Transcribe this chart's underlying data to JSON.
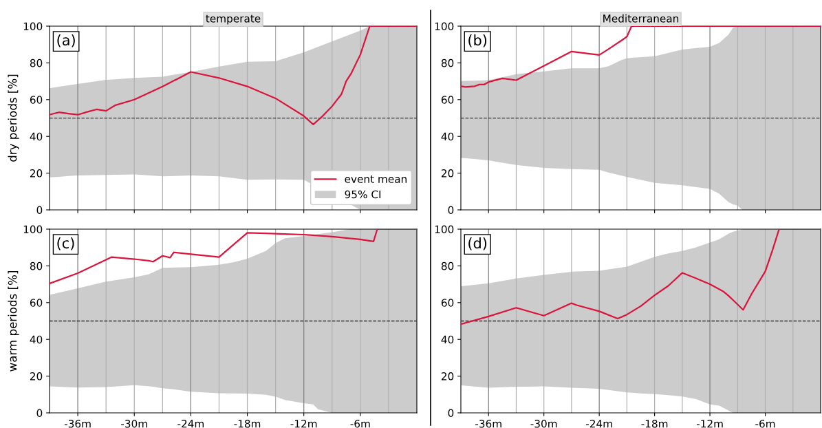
{
  "chart_data": [
    {
      "type": "line",
      "title": "temperate",
      "ylabel": "dry periods [%]",
      "xlim": [
        -39,
        0
      ],
      "ylim": [
        0,
        100
      ],
      "xticks": [
        {
          "value": -36,
          "label": null
        },
        {
          "value": -30,
          "label": null
        },
        {
          "value": -24,
          "label": null
        },
        {
          "value": -18,
          "label": null
        },
        {
          "value": -12,
          "label": null
        },
        {
          "value": -6,
          "label": null
        }
      ],
      "yticks": [
        0,
        20,
        40,
        60,
        80,
        100
      ],
      "tick_labels": "y",
      "legend": "bottom right",
      "annotations": [
        "(a)"
      ],
      "series": [
        {
          "name": "event mean",
          "color": "#dc143c",
          "x": [
            -39,
            -38,
            -37,
            -36,
            -35,
            -34,
            -33,
            -32,
            -30,
            -27,
            -24,
            -21,
            -18,
            -15,
            -12,
            -11,
            -10,
            -9,
            -8,
            -7.5,
            -7,
            -6,
            -5,
            0
          ],
          "values": [
            51.8,
            53.1,
            52.4,
            51.8,
            53.3,
            54.7,
            53.9,
            57,
            60,
            67.1,
            75.1,
            71.8,
            67.2,
            60.7,
            51.1,
            46.5,
            51.1,
            56.4,
            63,
            70.1,
            74,
            84.5,
            100,
            100
          ],
          "lower": [
            17.7,
            18,
            18.4,
            18.7,
            18.8,
            18.9,
            19,
            19.1,
            19.3,
            18.3,
            18.7,
            18.3,
            16.4,
            16.6,
            16.4,
            null,
            null,
            null,
            null,
            null,
            null,
            0,
            0,
            0
          ],
          "upper": [
            66.2,
            67,
            67.8,
            68.5,
            69.3,
            70,
            70.8,
            71.1,
            71.8,
            72.5,
            75.1,
            78,
            80.6,
            80.9,
            85.8,
            null,
            null,
            null,
            null,
            null,
            null,
            97.6,
            100,
            100
          ]
        },
        {
          "name": "95% CI",
          "type": "area",
          "color": "#cccccc"
        }
      ],
      "ref_lines": [
        {
          "axis": "y",
          "value": 50,
          "color": "#333333",
          "line_style": "dashed"
        },
        {
          "axis": "x",
          "value": -36,
          "color": "#808080"
        },
        {
          "axis": "x",
          "value": -33,
          "color": "#b0b0b0"
        },
        {
          "axis": "x",
          "value": -30,
          "color": "#b0b0b0"
        },
        {
          "axis": "x",
          "value": -27,
          "color": "#b0b0b0"
        },
        {
          "axis": "x",
          "value": -24,
          "color": "#808080"
        },
        {
          "axis": "x",
          "value": -21,
          "color": "#b0b0b0"
        },
        {
          "axis": "x",
          "value": -18,
          "color": "#b0b0b0"
        },
        {
          "axis": "x",
          "value": -15,
          "color": "#b0b0b0"
        },
        {
          "axis": "x",
          "value": -12,
          "color": "#808080"
        },
        {
          "axis": "x",
          "value": -9,
          "color": "#b0b0b0"
        },
        {
          "axis": "x",
          "value": -6,
          "color": "#b0b0b0"
        },
        {
          "axis": "x",
          "value": -3,
          "color": "#b0b0b0"
        }
      ]
    },
    {
      "type": "line",
      "title": "Mediterranean",
      "xlim": [
        -39,
        0
      ],
      "ylim": [
        0,
        100
      ],
      "xticks": [
        {
          "value": -36,
          "label": null
        },
        {
          "value": -30,
          "label": null
        },
        {
          "value": -24,
          "label": null
        },
        {
          "value": -18,
          "label": null
        },
        {
          "value": -12,
          "label": null
        },
        {
          "value": -6,
          "label": null
        }
      ],
      "yticks": [
        0,
        20,
        40,
        60,
        80,
        100
      ],
      "tick_labels": "y",
      "annotations": [
        "(b)"
      ],
      "series": [
        {
          "color": "#dc143c",
          "x": [
            -39,
            -38.5,
            -37.5,
            -37,
            -36.5,
            -36,
            -34.5,
            -33,
            -30,
            -27,
            -24,
            -23,
            -21.5,
            -21,
            -20.5,
            -18,
            -15,
            -12,
            -11,
            -10,
            -9.5,
            -9,
            -8.5,
            0
          ],
          "values": [
            67.3,
            66.9,
            67.3,
            68.2,
            68.2,
            69.6,
            71.6,
            70.6,
            78.4,
            86.2,
            84.3,
            87.5,
            92.5,
            94.3,
            100,
            100,
            100,
            100,
            100,
            100,
            100,
            100,
            100,
            100
          ],
          "lower": [
            28.3,
            28.1,
            27.7,
            27.4,
            27.2,
            27,
            25.7,
            24.4,
            22.8,
            22.2,
            21.8,
            20.3,
            18.5,
            17.9,
            17.4,
            14.7,
            13.4,
            11.4,
            8.8,
            4.3,
            3,
            2.3,
            0,
            0
          ],
          "upper": [
            70.1,
            70.2,
            70.3,
            70.4,
            70.5,
            70.6,
            72.2,
            73.9,
            75.4,
            77.1,
            77.1,
            78.2,
            81.7,
            82.5,
            82.8,
            83.6,
            87.3,
            88.8,
            90.8,
            95.3,
            99.2,
            100,
            100,
            100
          ]
        },
        {
          "type": "area",
          "color": "#cccccc"
        }
      ],
      "ref_lines": [
        {
          "axis": "y",
          "value": 50,
          "color": "#333333",
          "line_style": "dashed"
        },
        {
          "axis": "x",
          "value": -36,
          "color": "#808080"
        },
        {
          "axis": "x",
          "value": -33,
          "color": "#b0b0b0"
        },
        {
          "axis": "x",
          "value": -30,
          "color": "#b0b0b0"
        },
        {
          "axis": "x",
          "value": -27,
          "color": "#b0b0b0"
        },
        {
          "axis": "x",
          "value": -24,
          "color": "#808080"
        },
        {
          "axis": "x",
          "value": -21,
          "color": "#b0b0b0"
        },
        {
          "axis": "x",
          "value": -18,
          "color": "#b0b0b0"
        },
        {
          "axis": "x",
          "value": -15,
          "color": "#b0b0b0"
        },
        {
          "axis": "x",
          "value": -12,
          "color": "#808080"
        },
        {
          "axis": "x",
          "value": -9,
          "color": "#b0b0b0"
        },
        {
          "axis": "x",
          "value": -6,
          "color": "#b0b0b0"
        },
        {
          "axis": "x",
          "value": -3,
          "color": "#b0b0b0"
        }
      ]
    },
    {
      "type": "line",
      "ylabel": "warm periods [%]",
      "xlim": [
        -39,
        0
      ],
      "ylim": [
        0,
        100
      ],
      "xticks": [
        {
          "value": -36,
          "label": "-36m"
        },
        {
          "value": -30,
          "label": "-30m"
        },
        {
          "value": -24,
          "label": "-24m"
        },
        {
          "value": -18,
          "label": "-18m"
        },
        {
          "value": -12,
          "label": "-12m"
        },
        {
          "value": -6,
          "label": "-6m"
        }
      ],
      "yticks": [
        0,
        20,
        40,
        60,
        80,
        100
      ],
      "annotations": [
        "(c)"
      ],
      "series": [
        {
          "color": "#dc143c",
          "x": [
            -39,
            -36,
            -33,
            -32.4,
            -30,
            -28.5,
            -28,
            -27,
            -26.2,
            -25.8,
            -24,
            -21,
            -19.5,
            -18,
            -16,
            -15,
            -14,
            -12,
            -11,
            -10.5,
            -9.5,
            -9,
            -7.5,
            -7,
            -6,
            -4.6,
            -4.2,
            0
          ],
          "values": [
            70.4,
            76,
            83.3,
            84.8,
            83.7,
            82.8,
            82.3,
            85.5,
            84.5,
            87.4,
            86.4,
            84.8,
            91.4,
            98,
            97.7,
            97.5,
            97.3,
            97,
            96.7,
            96.5,
            96.1,
            95.9,
            95.2,
            94.9,
            94.4,
            93.3,
            100,
            100
          ],
          "lower": [
            14.4,
            13.8,
            14,
            14.2,
            15.1,
            14.5,
            14.2,
            13.4,
            13,
            12.8,
            11.5,
            10.7,
            10.6,
            10.5,
            9.8,
            8.8,
            7,
            5.2,
            4.6,
            2,
            0.7,
            0,
            0,
            0,
            0,
            0,
            0,
            0
          ],
          "upper": [
            64.2,
            67.8,
            71.4,
            71.9,
            73.8,
            75.4,
            76.5,
            78.9,
            79,
            79.1,
            79.3,
            80.6,
            81.9,
            83.9,
            88.2,
            92.4,
            95,
            96.3,
            97,
            97.3,
            98,
            98.3,
            99.6,
            100,
            100,
            100,
            100,
            100
          ]
        },
        {
          "type": "area",
          "color": "#cccccc"
        }
      ],
      "ref_lines": [
        {
          "axis": "y",
          "value": 50,
          "color": "#333333",
          "line_style": "dashed"
        },
        {
          "axis": "x",
          "value": -36,
          "color": "#808080"
        },
        {
          "axis": "x",
          "value": -33,
          "color": "#b0b0b0"
        },
        {
          "axis": "x",
          "value": -30,
          "color": "#b0b0b0"
        },
        {
          "axis": "x",
          "value": -27,
          "color": "#b0b0b0"
        },
        {
          "axis": "x",
          "value": -24,
          "color": "#808080"
        },
        {
          "axis": "x",
          "value": -21,
          "color": "#b0b0b0"
        },
        {
          "axis": "x",
          "value": -18,
          "color": "#b0b0b0"
        },
        {
          "axis": "x",
          "value": -15,
          "color": "#b0b0b0"
        },
        {
          "axis": "x",
          "value": -12,
          "color": "#808080"
        },
        {
          "axis": "x",
          "value": -9,
          "color": "#b0b0b0"
        },
        {
          "axis": "x",
          "value": -6,
          "color": "#b0b0b0"
        },
        {
          "axis": "x",
          "value": -3,
          "color": "#b0b0b0"
        }
      ]
    },
    {
      "type": "line",
      "xlim": [
        -39,
        0
      ],
      "ylim": [
        0,
        100
      ],
      "xticks": [
        {
          "value": -36,
          "label": "-36m"
        },
        {
          "value": -30,
          "label": "-30m"
        },
        {
          "value": -24,
          "label": "-24m"
        },
        {
          "value": -18,
          "label": "-18m"
        },
        {
          "value": -12,
          "label": "-12m"
        },
        {
          "value": -6,
          "label": "-6m"
        }
      ],
      "yticks": [
        0,
        20,
        40,
        60,
        80,
        100
      ],
      "annotations": [
        "(d)"
      ],
      "series": [
        {
          "color": "#dc143c",
          "x": [
            -39,
            -36,
            -33,
            -30,
            -27,
            -26.5,
            -24,
            -22,
            -21,
            -19.5,
            -18,
            -16.5,
            -15,
            -13.5,
            -12,
            -11,
            -10.5,
            -10,
            -9.5,
            -8.4,
            -7.5,
            -6,
            -5.2,
            -4.5,
            0
          ],
          "values": [
            48.3,
            52.5,
            57.2,
            52.9,
            59.7,
            58.7,
            55.3,
            51.3,
            53.5,
            58.1,
            64,
            69.2,
            76.2,
            73.2,
            70,
            67.3,
            65.9,
            63.8,
            61.4,
            56.1,
            64.6,
            77,
            88.8,
            100,
            100
          ],
          "lower": [
            15,
            13.7,
            14.2,
            14.4,
            13.7,
            13.6,
            13.1,
            11.8,
            11.1,
            10.6,
            10.2,
            9.6,
            8.9,
            7.5,
            4.6,
            3.9,
            2.6,
            1.3,
            0,
            0,
            0,
            0,
            0,
            0,
            0
          ],
          "upper": [
            68.9,
            70.5,
            73.1,
            75.1,
            76.8,
            77,
            77.3,
            78.8,
            79.6,
            82.2,
            84.9,
            86.8,
            88.1,
            90.1,
            92.7,
            94.5,
            96,
            97.5,
            98.6,
            100,
            100,
            100,
            100,
            100,
            100
          ]
        },
        {
          "type": "area",
          "color": "#cccccc"
        }
      ],
      "ref_lines": [
        {
          "axis": "y",
          "value": 50,
          "color": "#333333",
          "line_style": "dashed"
        },
        {
          "axis": "x",
          "value": -36,
          "color": "#808080"
        },
        {
          "axis": "x",
          "value": -33,
          "color": "#b0b0b0"
        },
        {
          "axis": "x",
          "value": -30,
          "color": "#b0b0b0"
        },
        {
          "axis": "x",
          "value": -27,
          "color": "#b0b0b0"
        },
        {
          "axis": "x",
          "value": -24,
          "color": "#808080"
        },
        {
          "axis": "x",
          "value": -21,
          "color": "#b0b0b0"
        },
        {
          "axis": "x",
          "value": -18,
          "color": "#b0b0b0"
        },
        {
          "axis": "x",
          "value": -15,
          "color": "#b0b0b0"
        },
        {
          "axis": "x",
          "value": -12,
          "color": "#808080"
        },
        {
          "axis": "x",
          "value": -9,
          "color": "#b0b0b0"
        },
        {
          "axis": "x",
          "value": -6,
          "color": "#b0b0b0"
        },
        {
          "axis": "x",
          "value": -3,
          "color": "#b0b0b0"
        }
      ]
    }
  ]
}
